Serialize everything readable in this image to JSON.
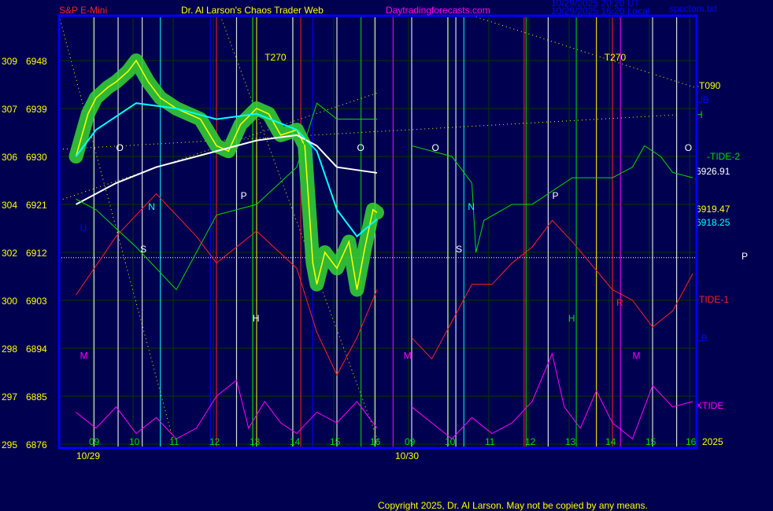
{
  "header": {
    "symbol": "S&P E-Mini",
    "title": "Dr. Al Larson's Chaos Trader Web",
    "site": "Daytradingforecasts.com",
    "time_ut": "10/29/2025 20:20 UT",
    "time_local": "10/29/2025 16:20 Local",
    "file": "spcctom.txt"
  },
  "footer": {
    "copyright": "Copyright 2025, Dr. Al Larson. May not be copied by any means."
  },
  "colors": {
    "background": "#000050",
    "price": "#ffff00",
    "ma_fast": "#00ffff",
    "ma_slow": "#ffffff",
    "tide2": "#00dd00",
    "tide1": "#ff2020",
    "xtide": "#ff00ff",
    "frame": "#0000ff",
    "halo": "#33cc33"
  },
  "chart_data": {
    "type": "line",
    "y_ticks": [
      {
        "left": "309",
        "right": "6948",
        "price": 6948
      },
      {
        "left": "307",
        "right": "6939",
        "price": 6939
      },
      {
        "left": "306",
        "right": "6930",
        "price": 6930
      },
      {
        "left": "304",
        "right": "6921",
        "price": 6921
      },
      {
        "left": "302",
        "right": "6912",
        "price": 6912
      },
      {
        "left": "300",
        "right": "6903",
        "price": 6903
      },
      {
        "left": "298",
        "right": "6894",
        "price": 6894
      },
      {
        "left": "297",
        "right": "6885",
        "price": 6885
      },
      {
        "left": "295",
        "right": "6876",
        "price": 6876
      }
    ],
    "ylim": [
      6876,
      6952
    ],
    "dates": [
      "10/29",
      "10/30"
    ],
    "hour_ticks": [
      "09",
      "10",
      "11",
      "12",
      "13",
      "14",
      "15",
      "16"
    ],
    "year": "2025",
    "series": [
      {
        "name": "price",
        "color": "#ffff00",
        "points": [
          [
            0,
            8.5,
            6930
          ],
          [
            0,
            8.8,
            6938
          ],
          [
            0,
            9.0,
            6941
          ],
          [
            0,
            9.3,
            6943
          ],
          [
            0,
            9.5,
            6944
          ],
          [
            0,
            9.8,
            6946
          ],
          [
            0,
            10.0,
            6948
          ],
          [
            0,
            10.3,
            6944
          ],
          [
            0,
            10.6,
            6941
          ],
          [
            0,
            11.0,
            6939
          ],
          [
            0,
            11.3,
            6938
          ],
          [
            0,
            11.6,
            6937
          ],
          [
            0,
            12.0,
            6932
          ],
          [
            0,
            12.3,
            6931
          ],
          [
            0,
            12.6,
            6936
          ],
          [
            0,
            13.0,
            6939
          ],
          [
            0,
            13.3,
            6938
          ],
          [
            0,
            13.6,
            6934
          ],
          [
            0,
            14.0,
            6935
          ],
          [
            0,
            14.2,
            6932
          ],
          [
            0,
            14.4,
            6910
          ],
          [
            0,
            14.5,
            6906
          ],
          [
            0,
            14.7,
            6912
          ],
          [
            0,
            15.0,
            6909
          ],
          [
            0,
            15.3,
            6914
          ],
          [
            0,
            15.5,
            6905
          ],
          [
            0,
            15.7,
            6913
          ],
          [
            0,
            15.9,
            6920
          ],
          [
            0,
            16.0,
            6919.47
          ]
        ]
      },
      {
        "name": "ma-fast",
        "color": "#00ffff",
        "points": [
          [
            0,
            8.5,
            6930
          ],
          [
            0,
            9,
            6935
          ],
          [
            0,
            10,
            6940
          ],
          [
            0,
            11,
            6939
          ],
          [
            0,
            12,
            6937
          ],
          [
            0,
            13,
            6938
          ],
          [
            0,
            14,
            6935
          ],
          [
            0,
            14.5,
            6931
          ],
          [
            0,
            15,
            6920
          ],
          [
            0,
            15.5,
            6915
          ],
          [
            0,
            16,
            6918.25
          ]
        ]
      },
      {
        "name": "ma-slow",
        "color": "#ffffff",
        "points": [
          [
            0,
            8.5,
            6921
          ],
          [
            0,
            9.5,
            6925
          ],
          [
            0,
            10.5,
            6928
          ],
          [
            0,
            12,
            6931
          ],
          [
            0,
            13,
            6933
          ],
          [
            0,
            14,
            6934
          ],
          [
            0,
            14.5,
            6932
          ],
          [
            0,
            15,
            6928
          ],
          [
            0,
            16,
            6926.91
          ]
        ]
      },
      {
        "name": "TIDE-2",
        "color": "#00dd00",
        "points": [
          [
            0,
            8.5,
            6922
          ],
          [
            0,
            9,
            6920
          ],
          [
            0,
            10,
            6913
          ],
          [
            0,
            11,
            6905
          ],
          [
            0,
            12,
            6919
          ],
          [
            0,
            13,
            6921
          ],
          [
            0,
            14,
            6928
          ],
          [
            0,
            14.5,
            6940
          ],
          [
            0,
            15,
            6937
          ],
          [
            0,
            16,
            6937
          ],
          [
            1,
            9,
            6932
          ],
          [
            1,
            10,
            6930
          ],
          [
            1,
            10.5,
            6925
          ],
          [
            1,
            10.6,
            6912
          ],
          [
            1,
            10.8,
            6918
          ],
          [
            1,
            11.5,
            6921
          ],
          [
            1,
            12,
            6921
          ],
          [
            1,
            13,
            6926
          ],
          [
            1,
            14,
            6926
          ],
          [
            1,
            14.5,
            6928
          ],
          [
            1,
            14.8,
            6932
          ],
          [
            1,
            15.2,
            6930
          ],
          [
            1,
            15.5,
            6927
          ],
          [
            1,
            16,
            6926
          ]
        ]
      },
      {
        "name": "TIDE-1",
        "color": "#ff2020",
        "points": [
          [
            0,
            8.5,
            6904
          ],
          [
            0,
            9.5,
            6915
          ],
          [
            0,
            10.5,
            6923
          ],
          [
            0,
            11.5,
            6915
          ],
          [
            0,
            12,
            6910
          ],
          [
            0,
            13,
            6916
          ],
          [
            0,
            14,
            6909
          ],
          [
            0,
            14.5,
            6897
          ],
          [
            0,
            15,
            6889
          ],
          [
            0,
            15.5,
            6896
          ],
          [
            0,
            16,
            6905
          ],
          [
            1,
            9,
            6896
          ],
          [
            1,
            9.5,
            6892
          ],
          [
            1,
            10,
            6899
          ],
          [
            1,
            10.5,
            6906
          ],
          [
            1,
            11,
            6906
          ],
          [
            1,
            11.5,
            6910
          ],
          [
            1,
            12,
            6913
          ],
          [
            1,
            12.5,
            6918
          ],
          [
            1,
            13,
            6914
          ],
          [
            1,
            14,
            6905
          ],
          [
            1,
            14.5,
            6903
          ],
          [
            1,
            15,
            6898
          ],
          [
            1,
            15.5,
            6901
          ],
          [
            1,
            16,
            6908
          ]
        ]
      },
      {
        "name": "XTIDE",
        "color": "#ff00ff",
        "points": [
          [
            0,
            8.5,
            6882
          ],
          [
            0,
            9,
            6879
          ],
          [
            0,
            9.5,
            6883
          ],
          [
            0,
            10,
            6878
          ],
          [
            0,
            10.5,
            6881
          ],
          [
            0,
            11,
            6877
          ],
          [
            0,
            11.5,
            6879
          ],
          [
            0,
            12,
            6885
          ],
          [
            0,
            12.5,
            6888
          ],
          [
            0,
            12.8,
            6879
          ],
          [
            0,
            13.2,
            6884
          ],
          [
            0,
            13.6,
            6880
          ],
          [
            0,
            14,
            6878
          ],
          [
            0,
            14.5,
            6882
          ],
          [
            0,
            15,
            6880
          ],
          [
            0,
            15.5,
            6884
          ],
          [
            0,
            16,
            6879
          ],
          [
            1,
            9,
            6883
          ],
          [
            1,
            9.5,
            6880
          ],
          [
            1,
            10,
            6877
          ],
          [
            1,
            10.5,
            6881
          ],
          [
            1,
            11,
            6878
          ],
          [
            1,
            11.5,
            6880
          ],
          [
            1,
            12,
            6884
          ],
          [
            1,
            12.5,
            6893
          ],
          [
            1,
            12.8,
            6883
          ],
          [
            1,
            13.2,
            6879
          ],
          [
            1,
            13.6,
            6886
          ],
          [
            1,
            14,
            6880
          ],
          [
            1,
            14.5,
            6877
          ],
          [
            1,
            15,
            6887
          ],
          [
            1,
            15.5,
            6883
          ],
          [
            1,
            16,
            6884
          ]
        ]
      }
    ],
    "right_labels": [
      {
        "text": "-T090",
        "color": "#ffff00",
        "price": 6942
      },
      {
        "text": "UB",
        "color": "#0000ff",
        "price": 6940
      },
      {
        "text": "H",
        "color": "#00dd00",
        "price": 6937
      },
      {
        "text": "-TIDE-2",
        "color": "#00dd00",
        "price": 6928
      },
      {
        "text": "6926.91",
        "color": "#ffffff",
        "price": 6926.91
      },
      {
        "text": "6919.47",
        "color": "#ffff00",
        "price": 6919.47
      },
      {
        "text": "6918.25",
        "color": "#00ffff",
        "price": 6918.25
      },
      {
        "text": "P",
        "color": "#ffffff",
        "price": 6911
      },
      {
        "text": "-TIDE-1",
        "color": "#ff2020",
        "price": 6903
      },
      {
        "text": "LB",
        "color": "#0000ff",
        "price": 6895
      },
      {
        "text": "XTIDE",
        "color": "#ff00ff",
        "price": 6884
      }
    ],
    "annotations": [
      {
        "text": "T270",
        "color": "#ffff00",
        "day": 0,
        "hour": 13.2,
        "price": 6948
      },
      {
        "text": "T270",
        "color": "#ffff00",
        "day": 1,
        "hour": 13.8,
        "price": 6948
      },
      {
        "text": "O",
        "color": "#ffffff",
        "day": 0,
        "hour": 9.5,
        "price": 6931
      },
      {
        "text": "O",
        "color": "#ffffff",
        "day": 0,
        "hour": 15.5,
        "price": 6931
      },
      {
        "text": "O",
        "color": "#ffffff",
        "day": 1,
        "hour": 9.5,
        "price": 6931
      },
      {
        "text": "O",
        "color": "#ffffff",
        "day": 1,
        "hour": 15.8,
        "price": 6931
      },
      {
        "text": "P",
        "color": "#ffffff",
        "day": 0,
        "hour": 12.6,
        "price": 6922
      },
      {
        "text": "P",
        "color": "#ffffff",
        "day": 1,
        "hour": 12.5,
        "price": 6922
      },
      {
        "text": "N",
        "color": "#00ffff",
        "day": 0,
        "hour": 10.3,
        "price": 6920
      },
      {
        "text": "N",
        "color": "#00ffff",
        "day": 1,
        "hour": 10.4,
        "price": 6920
      },
      {
        "text": "S",
        "color": "#ffffff",
        "day": 0,
        "hour": 10.1,
        "price": 6912
      },
      {
        "text": "S",
        "color": "#ffffff",
        "day": 1,
        "hour": 10.1,
        "price": 6912
      },
      {
        "text": "U",
        "color": "#0000ff",
        "day": 0,
        "hour": 8.6,
        "price": 6916
      },
      {
        "text": "H",
        "color": "#ffffff",
        "day": 0,
        "hour": 12.9,
        "price": 6899
      },
      {
        "text": "H",
        "color": "#00dd00",
        "day": 1,
        "hour": 12.9,
        "price": 6899
      },
      {
        "text": "R",
        "color": "#ff2020",
        "day": 1,
        "hour": 14.1,
        "price": 6902
      },
      {
        "text": "M",
        "color": "#ff00ff",
        "day": 0,
        "hour": 8.6,
        "price": 6892
      },
      {
        "text": "M",
        "color": "#ff00ff",
        "day": 1,
        "hour": 8.8,
        "price": 6892
      },
      {
        "text": "M",
        "color": "#ff00ff",
        "day": 1,
        "hour": 14.5,
        "price": 6892
      }
    ]
  }
}
